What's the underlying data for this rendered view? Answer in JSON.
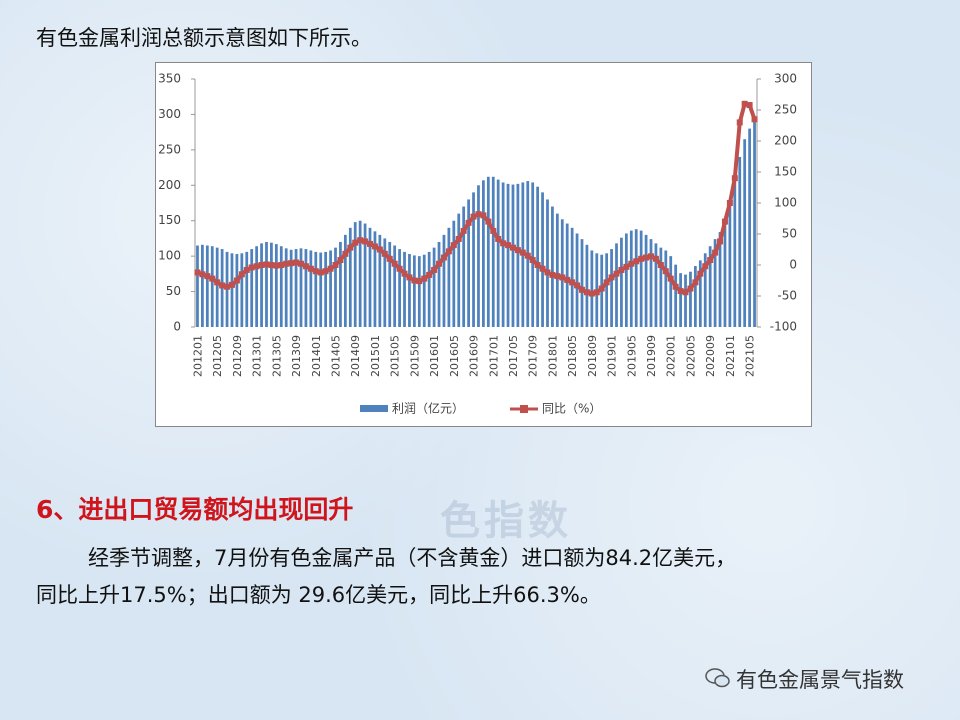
{
  "header": "有色金属利润总额示意图如下所示。",
  "chart_data": {
    "type": "bar-line",
    "categories": [
      "201201",
      null,
      null,
      null,
      "201205",
      null,
      null,
      null,
      "201209",
      null,
      null,
      null,
      "201301",
      null,
      null,
      null,
      "201305",
      null,
      null,
      null,
      "201309",
      null,
      null,
      null,
      "201401",
      null,
      null,
      null,
      "201405",
      null,
      null,
      null,
      "201409",
      null,
      null,
      null,
      "201501",
      null,
      null,
      null,
      "201505",
      null,
      null,
      null,
      "201509",
      null,
      null,
      null,
      "201601",
      null,
      null,
      null,
      "201605",
      null,
      null,
      null,
      "201609",
      null,
      null,
      null,
      "201701",
      null,
      null,
      null,
      "201705",
      null,
      null,
      null,
      "201709",
      null,
      null,
      null,
      "201801",
      null,
      null,
      null,
      "201805",
      null,
      null,
      null,
      "201809",
      null,
      null,
      null,
      "201901",
      null,
      null,
      null,
      "201905",
      null,
      null,
      null,
      "201909",
      null,
      null,
      null,
      "202001",
      null,
      null,
      null,
      "202005",
      null,
      null,
      null,
      "202009",
      null,
      null,
      null,
      "202101",
      null,
      null,
      null,
      "202105",
      null
    ],
    "series": [
      {
        "name": "利润（亿元）",
        "color": "#4f81bd",
        "type": "bar",
        "axis": "y",
        "values": [
          115,
          116,
          115,
          114,
          112,
          110,
          106,
          104,
          103,
          104,
          106,
          110,
          114,
          118,
          120,
          119,
          117,
          114,
          111,
          109,
          110,
          111,
          110,
          108,
          106,
          105,
          106,
          108,
          112,
          120,
          130,
          140,
          148,
          150,
          146,
          140,
          135,
          130,
          125,
          120,
          115,
          110,
          106,
          103,
          101,
          100,
          102,
          106,
          112,
          120,
          130,
          140,
          150,
          160,
          170,
          180,
          190,
          200,
          207,
          212,
          212,
          208,
          204,
          202,
          201,
          202,
          204,
          206,
          204,
          198,
          190,
          180,
          170,
          160,
          152,
          146,
          140,
          132,
          124,
          116,
          108,
          104,
          102,
          104,
          110,
          118,
          126,
          132,
          136,
          138,
          136,
          130,
          124,
          118,
          112,
          108,
          100,
          88,
          76,
          74,
          78,
          86,
          94,
          104,
          114,
          124,
          134,
          150,
          180,
          205,
          240,
          265,
          280,
          295
        ]
      },
      {
        "name": "同比（%）",
        "color": "#c0504d",
        "type": "line",
        "axis": "y2",
        "values": [
          -12,
          -15,
          -18,
          -22,
          -28,
          -33,
          -35,
          -32,
          -25,
          -15,
          -8,
          -4,
          -2,
          0,
          1,
          0,
          -1,
          0,
          2,
          3,
          4,
          2,
          -2,
          -6,
          -10,
          -12,
          -10,
          -6,
          0,
          8,
          18,
          28,
          36,
          40,
          38,
          34,
          30,
          25,
          18,
          10,
          2,
          -6,
          -14,
          -20,
          -25,
          -26,
          -22,
          -16,
          -8,
          2,
          12,
          22,
          32,
          42,
          55,
          68,
          78,
          82,
          80,
          70,
          55,
          42,
          35,
          32,
          28,
          24,
          20,
          15,
          8,
          0,
          -6,
          -12,
          -16,
          -18,
          -20,
          -24,
          -28,
          -33,
          -40,
          -44,
          -46,
          -44,
          -38,
          -28,
          -20,
          -14,
          -8,
          -3,
          2,
          6,
          10,
          12,
          14,
          10,
          0,
          -10,
          -22,
          -35,
          -42,
          -44,
          -38,
          -28,
          -14,
          -2,
          8,
          20,
          38,
          70,
          100,
          140,
          230,
          260,
          258,
          235
        ]
      }
    ],
    "ylim": [
      0,
      350
    ],
    "yticks": [
      0,
      50,
      100,
      150,
      200,
      250,
      300,
      350
    ],
    "y2lim": [
      -100,
      300
    ],
    "y2ticks": [
      -100,
      -50,
      0,
      50,
      100,
      150,
      200,
      250,
      300
    ],
    "legend": "bottom"
  },
  "heading": "6、进出口贸易额均出现回升",
  "watermark": "色指数",
  "paragraph": [
    "经季节调整，7月份有色金属产品（不含黄金）进口额为84.2亿美元，",
    "同比上升17.5%；出口额为 29.6亿美元，同比上升66.3%。"
  ],
  "footer": "有色金属景气指数"
}
